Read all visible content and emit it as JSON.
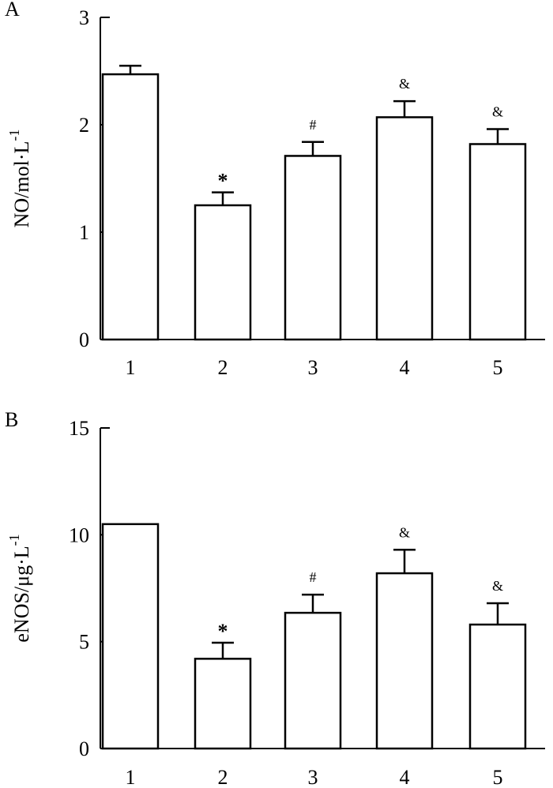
{
  "chart_data": [
    {
      "type": "bar",
      "panel_label": "A",
      "categories": [
        "1",
        "2",
        "3",
        "4",
        "5"
      ],
      "values": [
        2.47,
        1.25,
        1.71,
        2.07,
        1.82
      ],
      "errors": [
        0.08,
        0.12,
        0.13,
        0.15,
        0.14
      ],
      "annotations": [
        "",
        "*",
        "#",
        "&",
        "&"
      ],
      "ylabel": "NO/mol·L",
      "ylabel_superscript": "-1",
      "ylim": [
        0,
        3
      ],
      "yticks": [
        0,
        1,
        2,
        3
      ],
      "xlabel": "",
      "grid": false,
      "bar_color": "#ffffff",
      "edge_color": "#000000"
    },
    {
      "type": "bar",
      "panel_label": "B",
      "categories": [
        "1",
        "2",
        "3",
        "4",
        "5"
      ],
      "values": [
        10.5,
        4.2,
        6.35,
        8.2,
        5.8
      ],
      "errors": [
        0,
        0.75,
        0.85,
        1.1,
        1.0
      ],
      "annotations": [
        "",
        "*",
        "#",
        "&",
        "&"
      ],
      "ylabel": "eNOS/μg·L",
      "ylabel_superscript": "-1",
      "ylim": [
        0,
        15
      ],
      "yticks": [
        0,
        5,
        10,
        15
      ],
      "xlabel": "",
      "grid": false,
      "bar_color": "#ffffff",
      "edge_color": "#000000"
    }
  ]
}
